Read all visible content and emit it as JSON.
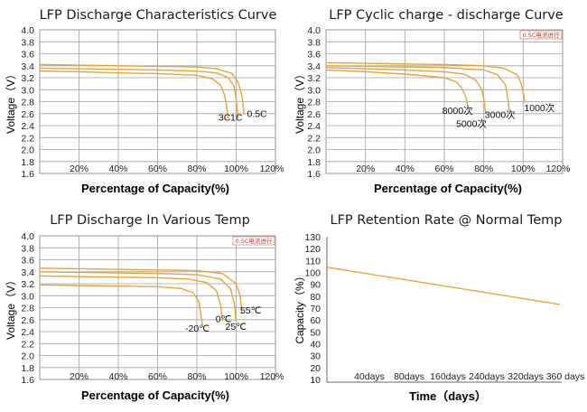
{
  "colors": {
    "curve": "#e8a33a",
    "grid": "#a0a0a0",
    "note_text": "#c0392b"
  },
  "chart_data": [
    {
      "type": "line",
      "title": "LFP Discharge Characteristics Curve",
      "xlabel": "Percentage of Capacity(%)",
      "ylabel": "Voltage（V）",
      "xlim": [
        0,
        120
      ],
      "ylim": [
        1.6,
        4.0
      ],
      "xticks": [
        "20%",
        "40%",
        "60%",
        "80%",
        "100%",
        "120%"
      ],
      "yticks": [
        "4.0",
        "3.8",
        "3.6",
        "3.4",
        "3.2",
        "3.0",
        "2.8",
        "2.6",
        "2.4",
        "2.2",
        "2.0",
        "1.8",
        "1.6"
      ],
      "grid": true,
      "note": "",
      "series": [
        {
          "name": "3C",
          "x": [
            0,
            20,
            40,
            60,
            80,
            88,
            92,
            94,
            95,
            96
          ],
          "y": [
            3.31,
            3.3,
            3.28,
            3.27,
            3.24,
            3.18,
            3.08,
            2.92,
            2.75,
            2.52
          ]
        },
        {
          "name": "1C",
          "x": [
            0,
            20,
            40,
            60,
            80,
            90,
            96,
            99,
            100,
            101
          ],
          "y": [
            3.36,
            3.35,
            3.34,
            3.33,
            3.31,
            3.28,
            3.2,
            3.05,
            2.85,
            2.52
          ]
        },
        {
          "name": "0.5C",
          "x": [
            0,
            20,
            40,
            60,
            80,
            90,
            98,
            101,
            103,
            104
          ],
          "y": [
            3.42,
            3.41,
            3.4,
            3.39,
            3.38,
            3.35,
            3.27,
            3.12,
            2.9,
            2.58
          ]
        }
      ],
      "labels": [
        {
          "text": "3C",
          "x": 91,
          "y": 2.48
        },
        {
          "text": "1C",
          "x": 97,
          "y": 2.48
        },
        {
          "text": "0.5C",
          "x": 105.5,
          "y": 2.54
        }
      ]
    },
    {
      "type": "line",
      "title": "LFP Cyclic charge - discharge Curve",
      "xlabel": "Percentage of Capacity(%)",
      "ylabel": "Voltage（V）",
      "xlim": [
        0,
        120
      ],
      "ylim": [
        1.6,
        4.0
      ],
      "xticks": [
        "20%",
        "40%",
        "60%",
        "80%",
        "100%",
        "120%"
      ],
      "yticks": [
        "4.0",
        "3.8",
        "3.6",
        "3.4",
        "3.2",
        "3.0",
        "2.8",
        "2.6",
        "2.4",
        "2.2",
        "2.0",
        "1.8",
        "1.6"
      ],
      "grid": true,
      "note": "0.5C电流进行",
      "series": [
        {
          "name": "8000次",
          "x": [
            0,
            20,
            40,
            60,
            66,
            69,
            71,
            72
          ],
          "y": [
            3.33,
            3.3,
            3.26,
            3.2,
            3.13,
            3.02,
            2.87,
            2.72
          ]
        },
        {
          "name": "5000次",
          "x": [
            0,
            20,
            40,
            60,
            70,
            76,
            79,
            80,
            81
          ],
          "y": [
            3.37,
            3.35,
            3.33,
            3.3,
            3.26,
            3.16,
            3.0,
            2.85,
            2.6
          ]
        },
        {
          "name": "3000次",
          "x": [
            0,
            20,
            40,
            60,
            80,
            87,
            91,
            92,
            93
          ],
          "y": [
            3.4,
            3.39,
            3.38,
            3.37,
            3.33,
            3.25,
            3.08,
            2.9,
            2.65
          ]
        },
        {
          "name": "1000次",
          "x": [
            0,
            20,
            40,
            60,
            80,
            90,
            97,
            99,
            100,
            101
          ],
          "y": [
            3.45,
            3.44,
            3.43,
            3.42,
            3.4,
            3.36,
            3.25,
            3.1,
            2.95,
            2.78
          ]
        }
      ],
      "labels": [
        {
          "text": "8000次",
          "x": 59,
          "y": 2.6
        },
        {
          "text": "5000次",
          "x": 66,
          "y": 2.38
        },
        {
          "text": "3000次",
          "x": 80.5,
          "y": 2.53
        },
        {
          "text": "1000次",
          "x": 100.5,
          "y": 2.64
        }
      ]
    },
    {
      "type": "line",
      "title": "LFP Discharge In Various Temp",
      "xlabel": "Percentage of Capacity(%)",
      "ylabel": "Voltage（V）",
      "xlim": [
        0,
        120
      ],
      "ylim": [
        1.6,
        4.0
      ],
      "xticks": [
        "20%",
        "40%",
        "60%",
        "80%",
        "100%",
        "120%"
      ],
      "yticks": [
        "4.0",
        "3.8",
        "3.6",
        "3.4",
        "3.2",
        "3.0",
        "2.8",
        "2.6",
        "2.4",
        "2.2",
        "2.0",
        "1.8",
        "1.6"
      ],
      "grid": true,
      "note": "0.5C电流进行",
      "series": [
        {
          "name": "-20℃",
          "x": [
            0,
            20,
            40,
            60,
            72,
            78,
            81,
            82,
            83
          ],
          "y": [
            3.18,
            3.17,
            3.16,
            3.15,
            3.12,
            3.05,
            2.9,
            2.7,
            2.48
          ]
        },
        {
          "name": "0℃",
          "x": [
            0,
            20,
            40,
            60,
            75,
            85,
            90,
            92,
            93
          ],
          "y": [
            3.33,
            3.32,
            3.31,
            3.3,
            3.28,
            3.22,
            3.08,
            2.85,
            2.58
          ]
        },
        {
          "name": "25℃",
          "x": [
            0,
            20,
            40,
            60,
            80,
            92,
            97,
            99,
            100
          ],
          "y": [
            3.4,
            3.39,
            3.38,
            3.37,
            3.35,
            3.28,
            3.12,
            2.88,
            2.55
          ]
        },
        {
          "name": "55℃",
          "x": [
            0,
            20,
            40,
            60,
            80,
            93,
            100,
            102,
            103
          ],
          "y": [
            3.46,
            3.45,
            3.44,
            3.43,
            3.42,
            3.37,
            3.2,
            3.0,
            2.72
          ]
        }
      ],
      "labels": [
        {
          "text": "-20℃",
          "x": 74,
          "y": 2.4
        },
        {
          "text": "0℃",
          "x": 89.5,
          "y": 2.56
        },
        {
          "text": "25℃",
          "x": 94.5,
          "y": 2.43
        },
        {
          "text": "55℃",
          "x": 102,
          "y": 2.7
        }
      ]
    },
    {
      "type": "line",
      "title": "LFP Retention Rate @ Normal Temp",
      "xlabel": "Time（days）",
      "ylabel": "Capacity（%）",
      "xlim": [
        0,
        360
      ],
      "ylim": [
        10,
        130
      ],
      "xticks": [
        "40days",
        "80days",
        "160days",
        "240days",
        "320days",
        "360 days"
      ],
      "yticks": [
        "130",
        "120",
        "110",
        "100",
        "90",
        "80",
        "70",
        "60",
        "50",
        "40",
        "30",
        "20",
        "10"
      ],
      "grid": false,
      "note": "",
      "series": [
        {
          "name": "",
          "x": [
            0,
            360
          ],
          "y": [
            106,
            75
          ]
        }
      ],
      "labels": []
    }
  ]
}
